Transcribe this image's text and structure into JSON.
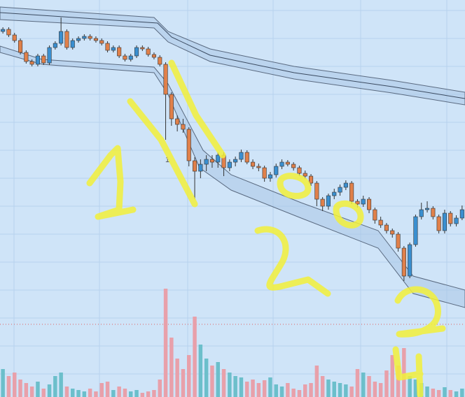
{
  "chart_data": {
    "type": "candlestick",
    "annotation": "1",
    "open": [
      455,
      458,
      450,
      442,
      425,
      412,
      408,
      420,
      410,
      432,
      438,
      455,
      432,
      442,
      445,
      448,
      445,
      442,
      438,
      428,
      432,
      420,
      415,
      420,
      432,
      430,
      422,
      418,
      408,
      365,
      330,
      322,
      315,
      270,
      255,
      265,
      272,
      268,
      278,
      260,
      268,
      272,
      282,
      268,
      262,
      260,
      245,
      250,
      262,
      268,
      265,
      260,
      252,
      248,
      238,
      215,
      205,
      220,
      225,
      232,
      238,
      212,
      208,
      215,
      200,
      185,
      178,
      170,
      165,
      145,
      105,
      150,
      190,
      200,
      202,
      190,
      170,
      195,
      180,
      188
    ],
    "high": [
      461,
      461,
      453,
      445,
      428,
      415,
      423,
      423,
      435,
      441,
      475,
      458,
      445,
      448,
      451,
      451,
      448,
      445,
      441,
      435,
      435,
      423,
      423,
      435,
      435,
      433,
      425,
      421,
      411,
      368,
      335,
      330,
      318,
      275,
      272,
      278,
      278,
      282,
      282,
      272,
      276,
      286,
      285,
      272,
      266,
      263,
      254,
      266,
      272,
      271,
      268,
      263,
      256,
      251,
      241,
      218,
      223,
      230,
      236,
      242,
      241,
      215,
      220,
      218,
      203,
      190,
      181,
      173,
      168,
      148,
      153,
      193,
      210,
      212,
      205,
      193,
      200,
      198,
      192,
      206
    ],
    "low": [
      452,
      447,
      439,
      422,
      409,
      405,
      405,
      407,
      407,
      429,
      435,
      429,
      429,
      439,
      442,
      442,
      439,
      435,
      425,
      425,
      417,
      412,
      412,
      417,
      427,
      419,
      415,
      405,
      300,
      320,
      312,
      310,
      262,
      215,
      245,
      255,
      260,
      260,
      248,
      255,
      262,
      268,
      265,
      258,
      255,
      240,
      240,
      246,
      258,
      262,
      256,
      248,
      244,
      234,
      205,
      198,
      200,
      215,
      220,
      228,
      208,
      203,
      204,
      195,
      180,
      174,
      166,
      160,
      140,
      98,
      102,
      147,
      186,
      196,
      186,
      166,
      166,
      176,
      176,
      185
    ],
    "close": [
      458,
      450,
      442,
      425,
      412,
      408,
      420,
      410,
      432,
      438,
      455,
      432,
      442,
      445,
      448,
      445,
      442,
      438,
      428,
      432,
      420,
      415,
      420,
      432,
      430,
      422,
      418,
      408,
      365,
      330,
      322,
      315,
      270,
      255,
      265,
      272,
      268,
      278,
      260,
      268,
      272,
      282,
      268,
      262,
      260,
      245,
      250,
      262,
      268,
      265,
      260,
      252,
      248,
      238,
      215,
      205,
      220,
      225,
      232,
      238,
      212,
      208,
      215,
      200,
      185,
      178,
      170,
      165,
      145,
      105,
      150,
      190,
      200,
      202,
      190,
      170,
      195,
      180,
      188,
      200
    ],
    "volume": [
      40,
      30,
      35,
      25,
      20,
      15,
      22,
      12,
      18,
      30,
      35,
      15,
      12,
      10,
      8,
      12,
      8,
      20,
      22,
      10,
      15,
      12,
      8,
      10,
      6,
      8,
      10,
      25,
      155,
      85,
      55,
      40,
      60,
      115,
      75,
      55,
      45,
      50,
      40,
      35,
      30,
      28,
      22,
      25,
      20,
      24,
      28,
      18,
      15,
      20,
      12,
      10,
      18,
      20,
      45,
      30,
      25,
      22,
      20,
      18,
      15,
      40,
      35,
      30,
      22,
      20,
      38,
      60,
      45,
      70,
      30,
      25,
      20,
      15,
      12,
      10,
      14,
      10,
      8,
      12
    ],
    "up_color": "#3a8fd0",
    "down_color": "#e0804a",
    "volume_up_color": "#6cbfcb",
    "volume_down_color": "#e8a0aa",
    "ylim": [
      40,
      500
    ],
    "volume_ylim": [
      0,
      160
    ]
  }
}
